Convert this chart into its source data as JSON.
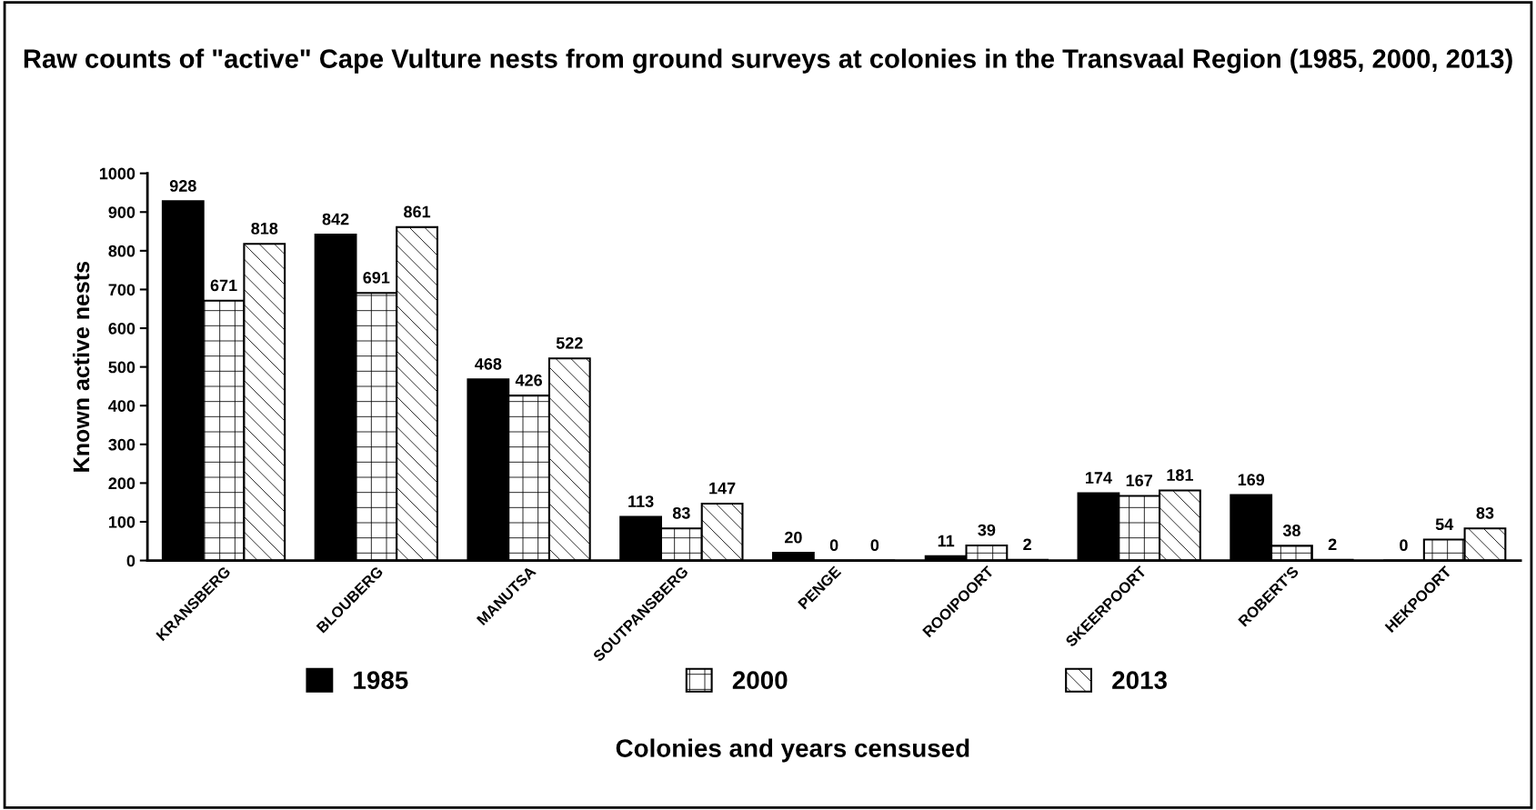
{
  "chart_data": {
    "type": "bar",
    "title": "Raw counts of \"active\" Cape Vulture nests from ground surveys at colonies in the Transvaal Region (1985, 2000, 2013)",
    "xlabel": "Colonies and years censused",
    "ylabel": "Known active nests",
    "categories": [
      "KRANSBERG",
      "BLOUBERG",
      "MANUTSA",
      "SOUTPANSBERG",
      "PENGE",
      "ROOIPOORT",
      "SKEERPOORT",
      "ROBERT'S",
      "HEKPOORT"
    ],
    "series": [
      {
        "name": "1985",
        "color": "#000000",
        "values": [
          928,
          842,
          468,
          113,
          20,
          11,
          174,
          169,
          0
        ]
      },
      {
        "name": "2000",
        "color": "#000000",
        "values": [
          671,
          691,
          426,
          83,
          0,
          39,
          167,
          38,
          54
        ]
      },
      {
        "name": "2013",
        "color": "#000000",
        "values": [
          818,
          861,
          522,
          147,
          0,
          2,
          181,
          2,
          83
        ]
      }
    ],
    "ylim": [
      0,
      1000
    ],
    "yticks": [
      0,
      100,
      200,
      300,
      400,
      500,
      600,
      700,
      800,
      900,
      1000
    ],
    "data_labels": true,
    "legend": "bottom",
    "grid": false
  }
}
